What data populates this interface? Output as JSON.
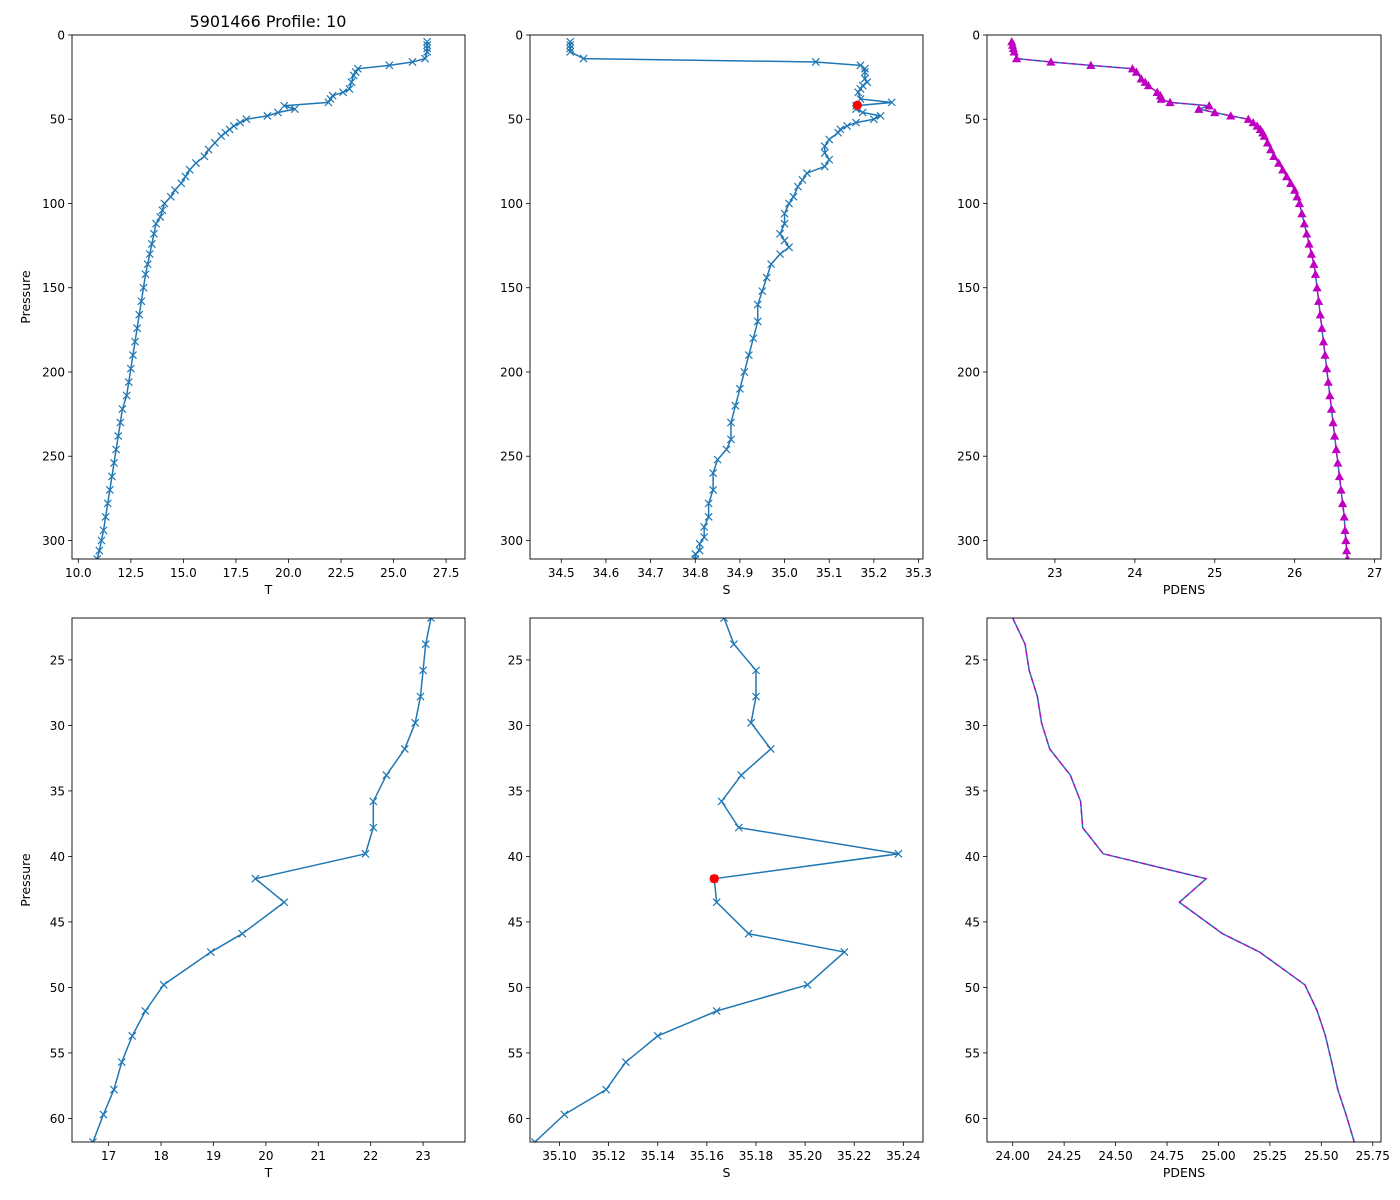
{
  "figure_title": "5901466 Profile: 10",
  "colors": {
    "line": "#1f77b4",
    "marker": "#c000c0",
    "dashed": "#c000c0",
    "flag": "#ff0000"
  },
  "chart_data": [
    {
      "id": "t_full",
      "type": "line",
      "xlabel": "T",
      "ylabel": "Pressure",
      "xlim": [
        9.7,
        28.4
      ],
      "ylim": [
        311,
        0
      ],
      "xticks": [
        10.0,
        12.5,
        15.0,
        17.5,
        20.0,
        22.5,
        25.0,
        27.5
      ],
      "xtick_labels": [
        "10.0",
        "12.5",
        "15.0",
        "17.5",
        "20.0",
        "22.5",
        "25.0",
        "27.5"
      ],
      "yticks": [
        0,
        50,
        100,
        150,
        200,
        250,
        300
      ],
      "ytick_labels": [
        "0",
        "50",
        "100",
        "150",
        "200",
        "250",
        "300"
      ],
      "series": [
        {
          "name": "T",
          "marker": "x",
          "color": "#1f77b4",
          "x": [
            26.6,
            26.6,
            26.6,
            26.6,
            26.5,
            25.9,
            24.8,
            23.3,
            23.2,
            23.1,
            23.0,
            22.9,
            22.6,
            22.1,
            22.0,
            21.9,
            19.8,
            20.3,
            19.5,
            19.0,
            18.0,
            17.7,
            17.4,
            17.2,
            17.0,
            16.8,
            16.5,
            16.2,
            16.0,
            15.6,
            15.3,
            15.1,
            14.9,
            14.6,
            14.4,
            14.1,
            14.0,
            13.9,
            13.7,
            13.6,
            13.5,
            13.4,
            13.3,
            13.2,
            13.1,
            13.0,
            12.9,
            12.8,
            12.7,
            12.6,
            12.5,
            12.4,
            12.3,
            12.1,
            12.0,
            11.9,
            11.8,
            11.7,
            11.6,
            11.5,
            11.4,
            11.3,
            11.2,
            11.1,
            11.0,
            10.9
          ],
          "y": [
            4,
            6,
            8,
            10,
            14,
            16,
            18,
            20,
            22,
            24,
            28,
            32,
            34,
            36,
            38,
            40,
            42,
            44,
            46,
            48,
            50,
            52,
            54,
            56,
            58,
            60,
            64,
            68,
            72,
            76,
            80,
            84,
            88,
            92,
            96,
            100,
            104,
            108,
            112,
            118,
            124,
            130,
            136,
            142,
            150,
            158,
            166,
            174,
            182,
            190,
            198,
            206,
            214,
            222,
            230,
            238,
            246,
            254,
            262,
            270,
            278,
            286,
            294,
            300,
            306,
            311
          ]
        }
      ]
    },
    {
      "id": "s_full",
      "type": "line",
      "xlabel": "S",
      "ylabel": "",
      "xlim": [
        34.43,
        35.31
      ],
      "ylim": [
        311,
        0
      ],
      "xticks": [
        34.5,
        34.6,
        34.7,
        34.8,
        34.9,
        35.0,
        35.1,
        35.2,
        35.3
      ],
      "xtick_labels": [
        "34.5",
        "34.6",
        "34.7",
        "34.8",
        "34.9",
        "35.0",
        "35.1",
        "35.2",
        "35.3"
      ],
      "yticks": [
        0,
        50,
        100,
        150,
        200,
        250,
        300
      ],
      "ytick_labels": [
        "0",
        "50",
        "100",
        "150",
        "200",
        "250",
        "300"
      ],
      "series": [
        {
          "name": "S",
          "marker": "x",
          "color": "#1f77b4",
          "x": [
            34.52,
            34.52,
            34.52,
            34.52,
            34.55,
            35.07,
            35.17,
            35.18,
            35.18,
            35.18,
            35.185,
            35.175,
            35.17,
            35.165,
            35.17,
            35.24,
            35.16,
            35.16,
            35.175,
            35.215,
            35.2,
            35.16,
            35.14,
            35.125,
            35.12,
            35.1,
            35.09,
            35.09,
            35.1,
            35.09,
            35.05,
            35.04,
            35.03,
            35.02,
            35.01,
            35.0,
            35.0,
            34.99,
            35.0,
            35.01,
            34.99,
            34.97,
            34.96,
            34.95,
            34.94,
            34.94,
            34.93,
            34.92,
            34.91,
            34.9,
            34.89,
            34.88,
            34.88,
            34.87,
            34.85,
            34.84,
            34.84,
            34.83,
            34.83,
            34.82,
            34.82,
            34.81,
            34.81,
            34.8,
            34.8
          ],
          "y": [
            4,
            6,
            8,
            10,
            14,
            16,
            18,
            20,
            22,
            26,
            28,
            30,
            32,
            34,
            38,
            40,
            42,
            44,
            46,
            48,
            50,
            52,
            54,
            56,
            58,
            62,
            66,
            70,
            74,
            78,
            82,
            86,
            90,
            96,
            100,
            106,
            112,
            118,
            122,
            126,
            130,
            136,
            144,
            152,
            160,
            170,
            180,
            190,
            200,
            210,
            220,
            230,
            240,
            246,
            252,
            260,
            270,
            278,
            286,
            292,
            298,
            302,
            306,
            308,
            311
          ]
        }
      ],
      "flag_point": {
        "x": 35.163,
        "y": 41.7
      }
    },
    {
      "id": "pdens_full",
      "type": "line",
      "xlabel": "PDENS",
      "ylabel": "",
      "xlim": [
        22.15,
        27.08
      ],
      "ylim": [
        311,
        0
      ],
      "xticks": [
        23,
        24,
        25,
        26,
        27
      ],
      "xtick_labels": [
        "23",
        "24",
        "25",
        "26",
        "27"
      ],
      "yticks": [
        0,
        50,
        100,
        150,
        200,
        250,
        300
      ],
      "ytick_labels": [
        "0",
        "50",
        "100",
        "150",
        "200",
        "250",
        "300"
      ],
      "series": [
        {
          "name": "PDENS",
          "marker": "^",
          "color": "#1f77b4",
          "dashed_overlay": true,
          "x": [
            22.46,
            22.47,
            22.48,
            22.49,
            22.52,
            22.95,
            23.45,
            23.97,
            24.02,
            24.08,
            24.13,
            24.17,
            24.28,
            24.32,
            24.33,
            24.44,
            24.93,
            24.8,
            25.0,
            25.2,
            25.42,
            25.48,
            25.53,
            25.57,
            25.6,
            25.62,
            25.66,
            25.7,
            25.74,
            25.8,
            25.85,
            25.9,
            25.95,
            26.0,
            26.03,
            26.06,
            26.09,
            26.12,
            26.15,
            26.18,
            26.21,
            26.24,
            26.26,
            26.28,
            26.3,
            26.32,
            26.34,
            26.36,
            26.38,
            26.4,
            26.42,
            26.44,
            26.46,
            26.48,
            26.5,
            26.52,
            26.54,
            26.56,
            26.58,
            26.6,
            26.62,
            26.63,
            26.64,
            26.65,
            26.66
          ],
          "y": [
            4,
            6,
            8,
            10,
            14,
            16,
            18,
            20,
            22,
            26,
            28,
            30,
            34,
            36,
            38,
            40,
            42,
            44,
            46,
            48,
            50,
            52,
            54,
            56,
            58,
            60,
            64,
            68,
            72,
            76,
            80,
            84,
            88,
            92,
            96,
            100,
            106,
            112,
            118,
            124,
            130,
            136,
            142,
            150,
            158,
            166,
            174,
            182,
            190,
            198,
            206,
            214,
            222,
            230,
            238,
            246,
            254,
            262,
            270,
            278,
            286,
            294,
            300,
            306,
            311
          ]
        }
      ]
    },
    {
      "id": "t_zoom",
      "type": "line",
      "xlabel": "T",
      "ylabel": "Pressure",
      "xlim": [
        16.3,
        23.8
      ],
      "ylim": [
        61.8,
        21.8
      ],
      "xticks": [
        17,
        18,
        19,
        20,
        21,
        22,
        23
      ],
      "xtick_labels": [
        "17",
        "18",
        "19",
        "20",
        "21",
        "22",
        "23"
      ],
      "yticks": [
        25,
        30,
        35,
        40,
        45,
        50,
        55,
        60
      ],
      "ytick_labels": [
        "25",
        "30",
        "35",
        "40",
        "45",
        "50",
        "55",
        "60"
      ],
      "series": [
        {
          "name": "T",
          "marker": "x",
          "color": "#1f77b4",
          "x": [
            23.15,
            23.05,
            23.0,
            22.95,
            22.85,
            22.65,
            22.3,
            22.05,
            22.05,
            21.9,
            19.8,
            20.35,
            19.55,
            18.95,
            18.05,
            17.7,
            17.45,
            17.25,
            17.1,
            16.9,
            16.7
          ],
          "y": [
            21.8,
            23.8,
            25.8,
            27.8,
            29.8,
            31.8,
            33.8,
            35.8,
            37.8,
            39.8,
            41.7,
            43.5,
            45.9,
            47.3,
            49.8,
            51.8,
            53.7,
            55.7,
            57.8,
            59.7,
            61.8
          ]
        }
      ]
    },
    {
      "id": "s_zoom",
      "type": "line",
      "xlabel": "S",
      "ylabel": "",
      "xlim": [
        35.088,
        35.248
      ],
      "ylim": [
        61.8,
        21.8
      ],
      "xticks": [
        35.1,
        35.12,
        35.14,
        35.16,
        35.18,
        35.2,
        35.22,
        35.24
      ],
      "xtick_labels": [
        "35.10",
        "35.12",
        "35.14",
        "35.16",
        "35.18",
        "35.20",
        "35.22",
        "35.24"
      ],
      "yticks": [
        25,
        30,
        35,
        40,
        45,
        50,
        55,
        60
      ],
      "ytick_labels": [
        "25",
        "30",
        "35",
        "40",
        "45",
        "50",
        "55",
        "60"
      ],
      "series": [
        {
          "name": "S",
          "marker": "x",
          "color": "#1f77b4",
          "x": [
            35.167,
            35.171,
            35.18,
            35.18,
            35.178,
            35.186,
            35.174,
            35.166,
            35.173,
            35.238,
            35.163,
            35.164,
            35.177,
            35.216,
            35.201,
            35.164,
            35.14,
            35.127,
            35.119,
            35.102,
            35.09
          ],
          "y": [
            21.8,
            23.8,
            25.8,
            27.8,
            29.8,
            31.8,
            33.8,
            35.8,
            37.8,
            39.8,
            41.7,
            43.5,
            45.9,
            47.3,
            49.8,
            51.8,
            53.7,
            55.7,
            57.8,
            59.7,
            61.8
          ]
        }
      ],
      "flag_point": {
        "x": 35.163,
        "y": 41.7
      }
    },
    {
      "id": "pdens_zoom",
      "type": "line",
      "xlabel": "PDENS",
      "ylabel": "",
      "xlim": [
        23.875,
        25.79
      ],
      "ylim": [
        61.8,
        21.8
      ],
      "xticks": [
        24.0,
        24.25,
        24.5,
        24.75,
        25.0,
        25.25,
        25.5,
        25.75
      ],
      "xtick_labels": [
        "24.00",
        "24.25",
        "24.50",
        "24.75",
        "25.00",
        "25.25",
        "25.50",
        "25.75"
      ],
      "yticks": [
        25,
        30,
        35,
        40,
        45,
        50,
        55,
        60
      ],
      "ytick_labels": [
        "25",
        "30",
        "35",
        "40",
        "45",
        "50",
        "55",
        "60"
      ],
      "series": [
        {
          "name": "PDENS",
          "marker": "none",
          "color": "#1f77b4",
          "dashed_overlay": true,
          "x": [
            24.0,
            24.06,
            24.08,
            24.12,
            24.14,
            24.18,
            24.28,
            24.33,
            24.34,
            24.44,
            24.94,
            24.81,
            25.02,
            25.2,
            25.42,
            25.48,
            25.52,
            25.55,
            25.58,
            25.62,
            25.66
          ],
          "y": [
            21.8,
            23.8,
            25.8,
            27.8,
            29.8,
            31.8,
            33.8,
            35.8,
            37.8,
            39.8,
            41.7,
            43.5,
            45.9,
            47.3,
            49.8,
            51.8,
            53.7,
            55.7,
            57.8,
            59.7,
            61.8
          ]
        }
      ]
    }
  ]
}
